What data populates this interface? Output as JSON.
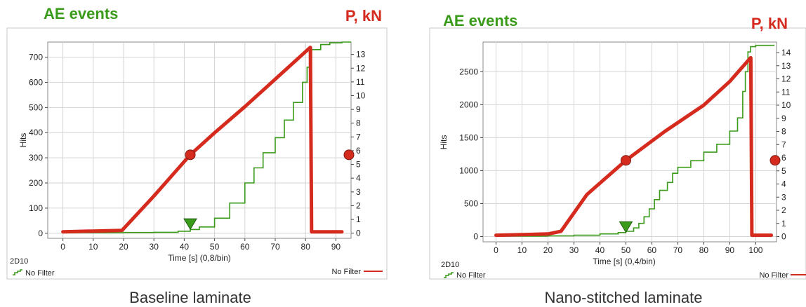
{
  "chart_data": [
    {
      "type": "line",
      "caption": "Baseline laminate",
      "left_title": "AE events",
      "right_title": "P, kN",
      "ylabel": "Hits",
      "xlabel": "Time [s] (0,8/bin)",
      "channel_label": "2D10",
      "legend_left": "No Filter",
      "legend_right": "No Filter",
      "xlim": [
        -5,
        95
      ],
      "x_ticks": [
        0,
        10,
        20,
        30,
        40,
        50,
        60,
        70,
        80,
        90
      ],
      "ylim": [
        -20,
        760
      ],
      "y_ticks": [
        0,
        100,
        200,
        300,
        400,
        500,
        600,
        700
      ],
      "y2lim": [
        -0.375,
        13.9
      ],
      "y2_ticks": [
        0,
        1,
        2,
        3,
        4,
        5,
        6,
        7,
        8,
        9,
        10,
        11,
        12,
        13
      ],
      "grid": true,
      "series": [
        {
          "axis": "left",
          "color": "#3a9a1a",
          "x": [
            0,
            20,
            30,
            38,
            42,
            45,
            50,
            55,
            60,
            63,
            66,
            70,
            73,
            76,
            79,
            80.5,
            81.5,
            82,
            85,
            88,
            92,
            95
          ],
          "y": [
            2,
            3,
            4,
            8,
            15,
            25,
            60,
            120,
            200,
            260,
            320,
            380,
            450,
            520,
            600,
            660,
            700,
            730,
            750,
            757,
            760,
            760
          ]
        },
        {
          "axis": "right",
          "color": "#d52b1e",
          "x": [
            0,
            10,
            19.5,
            30,
            42,
            50,
            60,
            70,
            81.5,
            81.6,
            82,
            92
          ],
          "y": [
            0.1,
            0.15,
            0.2,
            2.7,
            5.7,
            7.3,
            9.2,
            11.2,
            13.5,
            13.5,
            0.1,
            0.1
          ]
        }
      ],
      "markers": [
        {
          "type": "circle",
          "axis": "right",
          "x": 42,
          "y": 5.7,
          "color": "#d52b1e"
        },
        {
          "type": "circle-edge",
          "axis": "right",
          "y": 5.7,
          "color": "#d52b1e"
        },
        {
          "type": "triangle",
          "axis": "left",
          "x": 42,
          "y": 38,
          "color": "#3a9a1a"
        }
      ]
    },
    {
      "type": "line",
      "caption": "Nano-stitched laminate",
      "left_title": "AE events",
      "right_title": "P, kN",
      "ylabel": "Hits",
      "xlabel": "Time [s] (0,4/bin)",
      "channel_label": "2D10",
      "legend_left": "No Filter",
      "legend_right": "No Filter",
      "xlim": [
        -5,
        108
      ],
      "x_ticks": [
        0,
        10,
        20,
        30,
        40,
        50,
        60,
        70,
        80,
        90,
        100
      ],
      "ylim": [
        -80,
        2950
      ],
      "y_ticks": [
        0,
        500,
        1000,
        1500,
        2000,
        2500
      ],
      "y2lim": [
        -0.4,
        14.8
      ],
      "y2_ticks": [
        0,
        1,
        2,
        3,
        4,
        5,
        6,
        7,
        8,
        9,
        10,
        11,
        12,
        13,
        14
      ],
      "grid": true,
      "series": [
        {
          "axis": "left",
          "color": "#3a9a1a",
          "x": [
            0,
            20,
            30,
            40,
            47,
            50,
            53,
            55,
            57,
            59,
            61,
            63,
            66,
            68,
            70,
            75,
            80,
            85,
            90,
            93,
            95,
            96,
            97,
            98,
            100,
            107
          ],
          "y": [
            5,
            10,
            20,
            40,
            60,
            80,
            130,
            200,
            300,
            420,
            560,
            700,
            820,
            960,
            1050,
            1150,
            1280,
            1400,
            1600,
            1800,
            2200,
            2500,
            2800,
            2880,
            2900,
            2910
          ]
        },
        {
          "axis": "right",
          "color": "#d52b1e",
          "x": [
            0,
            10,
            20,
            25,
            35,
            50,
            65,
            80,
            90,
            98,
            98.1,
            98.5,
            106
          ],
          "y": [
            0.1,
            0.15,
            0.2,
            0.4,
            3.2,
            5.8,
            8.0,
            10.0,
            11.8,
            13.6,
            13.6,
            0.1,
            0.1
          ]
        }
      ],
      "markers": [
        {
          "type": "circle",
          "axis": "right",
          "x": 50,
          "y": 5.8,
          "color": "#d52b1e"
        },
        {
          "type": "circle-edge",
          "axis": "right",
          "y": 5.8,
          "color": "#d52b1e"
        },
        {
          "type": "triangle",
          "axis": "left",
          "x": 50,
          "y": 150,
          "color": "#3a9a1a"
        }
      ]
    }
  ]
}
